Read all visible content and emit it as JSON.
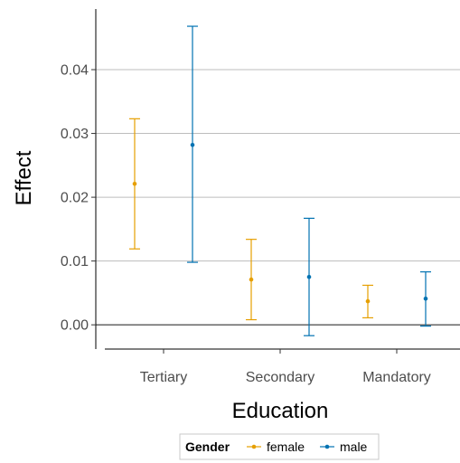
{
  "chart_data": {
    "type": "scatter",
    "subtype": "point-errorbar",
    "xlabel": "Education",
    "ylabel": "Effect",
    "categories": [
      "Tertiary",
      "Secondary",
      "Mandatory"
    ],
    "ylim": [
      -0.0038,
      0.0495
    ],
    "yticks": [
      0.0,
      0.01,
      0.02,
      0.03,
      0.04
    ],
    "ytick_labels": [
      "0.00",
      "0.01",
      "0.02",
      "0.03",
      "0.04"
    ],
    "grid": "horizontal-major",
    "reference_line": 0,
    "legend": {
      "title": "Gender",
      "position": "bottom"
    },
    "series": [
      {
        "name": "female",
        "color": "#E69F00",
        "estimate": [
          0.0221,
          0.0071,
          0.0037
        ],
        "lower": [
          0.0119,
          0.0008,
          0.0011
        ],
        "upper": [
          0.0323,
          0.0134,
          0.0062
        ]
      },
      {
        "name": "male",
        "color": "#0072B2",
        "estimate": [
          0.0282,
          0.0075,
          0.0041
        ],
        "lower": [
          0.0098,
          -0.0017,
          -0.0002
        ],
        "upper": [
          0.0468,
          0.0167,
          0.0083
        ]
      }
    ]
  }
}
